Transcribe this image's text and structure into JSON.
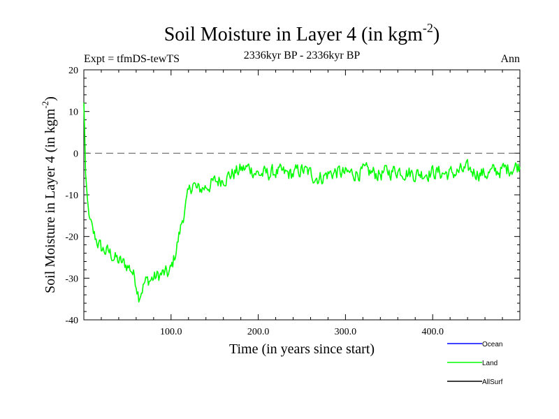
{
  "chart_data": {
    "type": "line",
    "title": "Soil Moisture in Layer 4 (in kgm",
    "title_sup": "-2",
    "title_close": ")",
    "expt_label": "Expt = tfmDS-tewTS",
    "period_label": "2336kyr BP - 2336kyr BP",
    "season_label": "Ann",
    "xlabel": "Time (in years since start)",
    "ylabel": "Soil Moisture in Layer 4 (in kgm",
    "ylabel_sup": "-2",
    "ylabel_close": ")",
    "xlim": [
      0,
      500
    ],
    "ylim": [
      -40,
      20
    ],
    "x_ticks": [
      100,
      200,
      300,
      400
    ],
    "x_tick_labels": [
      "100.0",
      "200.0",
      "300.0",
      "400.0"
    ],
    "y_ticks": [
      -40,
      -30,
      -20,
      -10,
      0,
      10,
      20
    ],
    "y_tick_labels": [
      "-40",
      "-30",
      "-20",
      "-10",
      "0",
      "10",
      "20"
    ],
    "reference_line": 0,
    "legend": [
      {
        "name": "Ocean",
        "color": "#0000ff"
      },
      {
        "name": "Land",
        "color": "#00ff00"
      },
      {
        "name": "AllSurf",
        "color": "#000000"
      }
    ],
    "series": [
      {
        "name": "Land",
        "color": "#00ff00",
        "keyframes": [
          [
            0,
            12
          ],
          [
            1,
            5
          ],
          [
            2,
            -5
          ],
          [
            4,
            -11
          ],
          [
            6,
            -15
          ],
          [
            8,
            -17
          ],
          [
            10,
            -19
          ],
          [
            15,
            -21
          ],
          [
            20,
            -23
          ],
          [
            30,
            -24
          ],
          [
            40,
            -26
          ],
          [
            50,
            -27
          ],
          [
            55,
            -28
          ],
          [
            60,
            -31
          ],
          [
            63,
            -34
          ],
          [
            70,
            -31
          ],
          [
            80,
            -30
          ],
          [
            90,
            -29
          ],
          [
            97,
            -29
          ],
          [
            100,
            -28
          ],
          [
            105,
            -24
          ],
          [
            110,
            -19
          ],
          [
            115,
            -14
          ],
          [
            120,
            -10
          ],
          [
            125,
            -7
          ],
          [
            130,
            -9
          ],
          [
            140,
            -8
          ],
          [
            150,
            -7
          ],
          [
            160,
            -6
          ],
          [
            170,
            -5
          ],
          [
            180,
            -4
          ],
          [
            190,
            -3.5
          ],
          [
            200,
            -5
          ],
          [
            210,
            -5
          ],
          [
            220,
            -4.5
          ],
          [
            230,
            -5
          ],
          [
            240,
            -5
          ],
          [
            250,
            -4
          ],
          [
            260,
            -5
          ],
          [
            270,
            -6
          ],
          [
            280,
            -5
          ],
          [
            290,
            -4.5
          ],
          [
            300,
            -5
          ],
          [
            320,
            -4.5
          ],
          [
            340,
            -5
          ],
          [
            360,
            -4
          ],
          [
            380,
            -5
          ],
          [
            400,
            -4.5
          ],
          [
            420,
            -5
          ],
          [
            440,
            -4
          ],
          [
            460,
            -5
          ],
          [
            480,
            -4
          ],
          [
            500,
            -3
          ]
        ],
        "noise_amplitude": 3.2,
        "step": 1
      },
      {
        "name": "Ocean",
        "color": "#0000ff",
        "keyframes": []
      },
      {
        "name": "AllSurf",
        "color": "#000000",
        "keyframes": []
      }
    ]
  }
}
